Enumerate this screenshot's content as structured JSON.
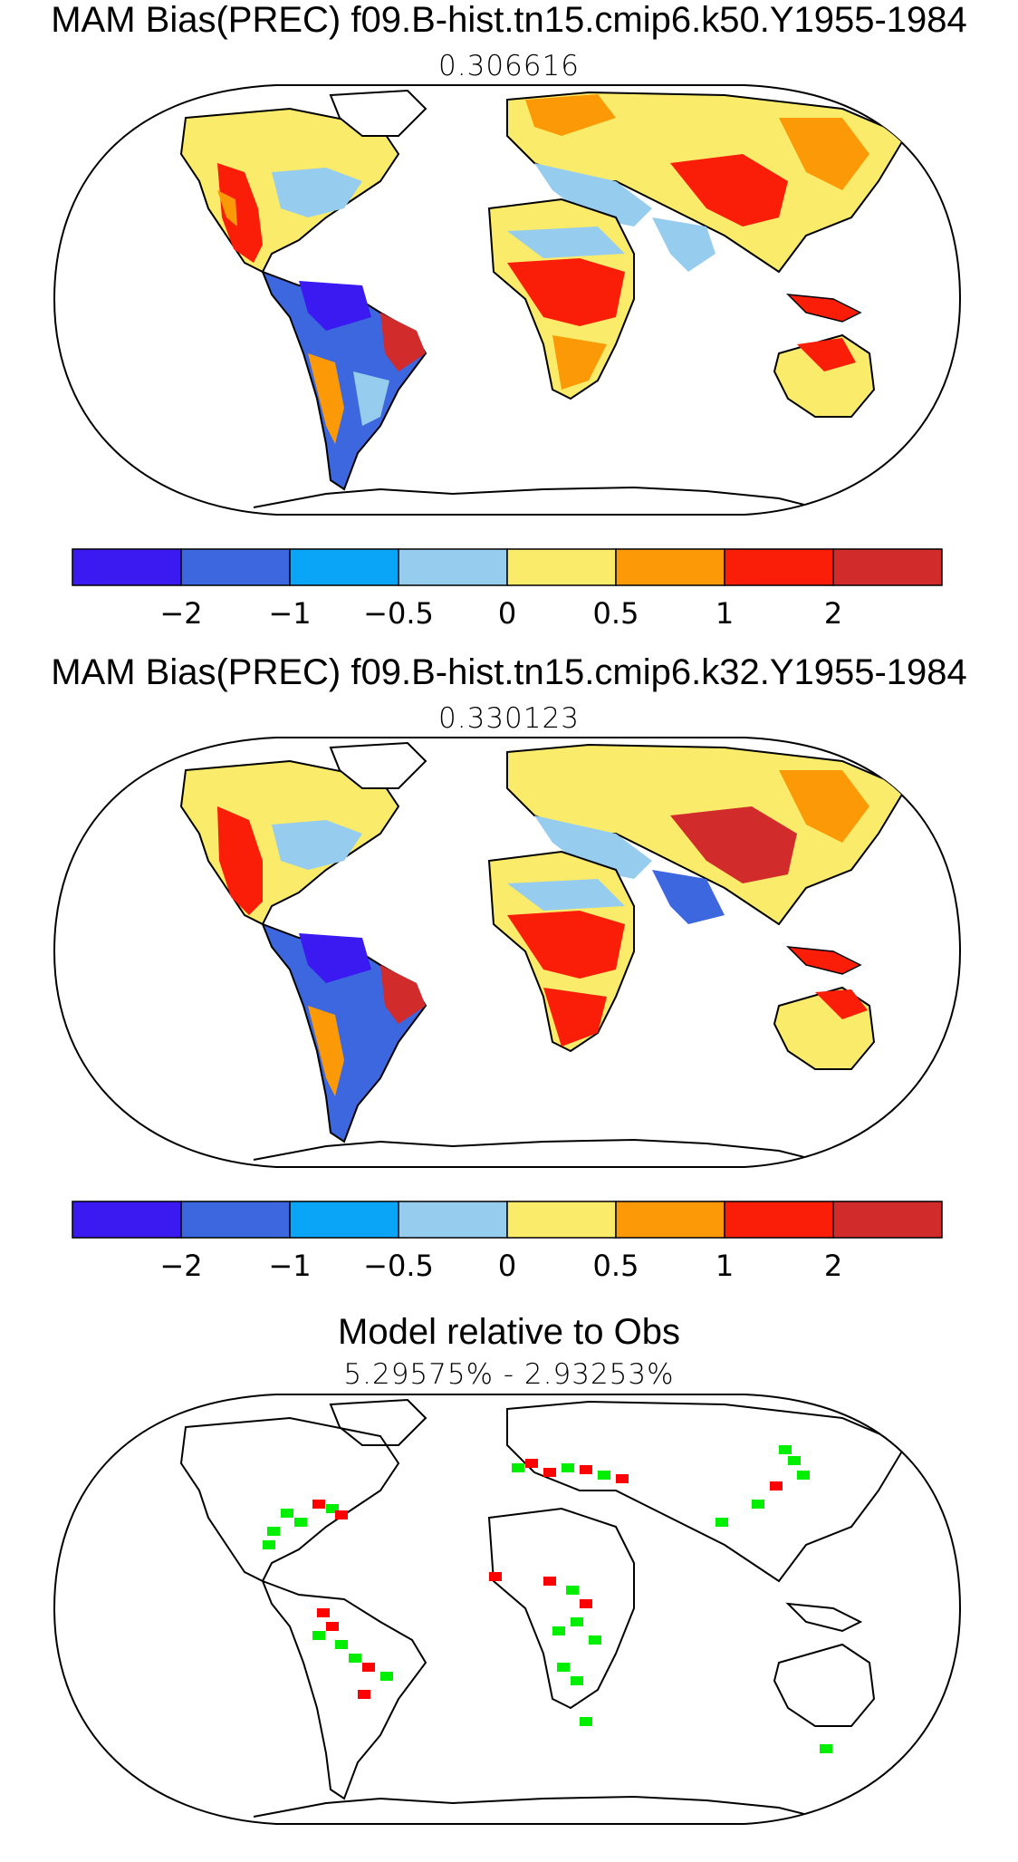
{
  "panels": [
    {
      "title": "MAM Bias(PREC) f09.B-hist.tn15.cmip6.k50.Y1955-1984",
      "value": "0.306616"
    },
    {
      "title": "MAM Bias(PREC) f09.B-hist.tn15.cmip6.k32.Y1955-1984",
      "value": "0.330123"
    },
    {
      "title": "Model relative to Obs",
      "value": "5.29575% - 2.93253%"
    }
  ],
  "colorbar": {
    "colors": [
      "#3a1af0",
      "#3d67de",
      "#0aa5f6",
      "#96cdee",
      "#fbeb6b",
      "#fb9a06",
      "#fa1d07",
      "#d12b2b"
    ],
    "labels": [
      "−2",
      "−1",
      "−0.5",
      "0",
      "0.5",
      "1",
      "2"
    ]
  },
  "highlight_colors": {
    "better": "#00ee00",
    "worse": "#ff0000"
  }
}
